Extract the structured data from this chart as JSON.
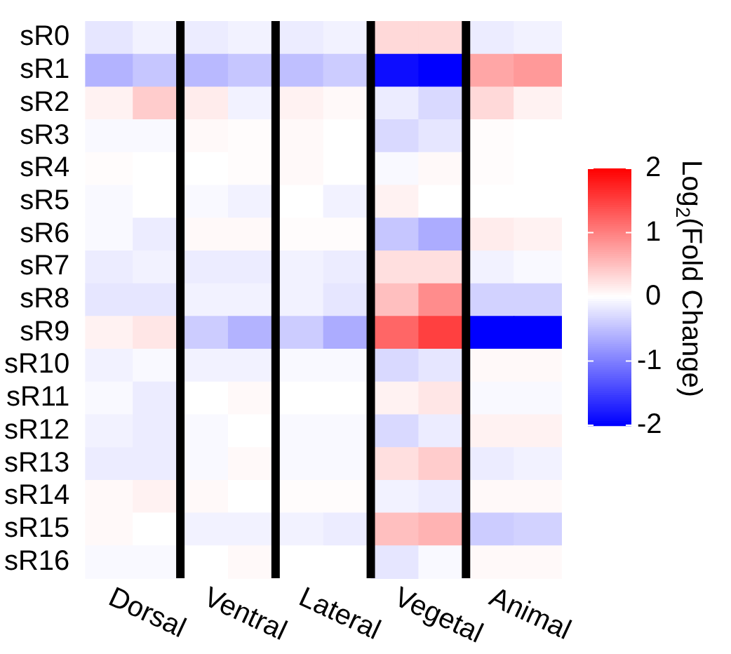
{
  "chart_data": {
    "type": "heatmap",
    "clabel": "Log$_{2}$(Fold Change)",
    "categories": [
      "Dorsal",
      null,
      "Ventral",
      null,
      "Lateral",
      null,
      "Vegetal",
      null,
      "Animal",
      null
    ],
    "y_categories": [
      "sR0",
      "sR1",
      "sR2",
      "sR3",
      "sR4",
      "sR5",
      "sR6",
      "sR7",
      "sR8",
      "sR9",
      "sR10",
      "sR11",
      "sR12",
      "sR13",
      "sR14",
      "sR15",
      "sR16"
    ],
    "cells": [
      [
        -0.2,
        -0.1,
        -0.15,
        -0.1,
        -0.15,
        -0.1,
        0.3,
        0.3,
        -0.15,
        -0.1
      ],
      [
        -0.6,
        -0.45,
        -0.55,
        -0.45,
        -0.5,
        -0.4,
        -1.9,
        -2,
        0.7,
        0.8
      ],
      [
        0.1,
        0.4,
        0.15,
        -0.1,
        0.1,
        0.05,
        -0.15,
        -0.3,
        0.3,
        0.1
      ],
      [
        -0.05,
        -0.05,
        0.05,
        0.02,
        0.05,
        0,
        -0.3,
        -0.2,
        0.02,
        0
      ],
      [
        0.02,
        0,
        0,
        0.02,
        0.05,
        0,
        -0.05,
        0.05,
        0.02,
        0
      ],
      [
        -0.05,
        0,
        -0.05,
        -0.1,
        0,
        -0.1,
        0.1,
        0,
        0,
        0
      ],
      [
        -0.05,
        -0.15,
        0.05,
        0.05,
        0.02,
        0.02,
        -0.45,
        -0.65,
        0.15,
        0.1
      ],
      [
        -0.15,
        -0.1,
        -0.15,
        -0.15,
        -0.1,
        -0.15,
        0.25,
        0.25,
        -0.1,
        -0.05
      ],
      [
        -0.2,
        -0.2,
        -0.1,
        -0.1,
        -0.1,
        -0.2,
        0.5,
        0.9,
        -0.35,
        -0.35
      ],
      [
        0.1,
        0.2,
        -0.4,
        -0.6,
        -0.4,
        -0.65,
        1.2,
        1.5,
        -2,
        -2
      ],
      [
        -0.1,
        -0.05,
        -0.1,
        -0.1,
        -0.05,
        -0.05,
        -0.3,
        -0.2,
        0.05,
        0.05
      ],
      [
        -0.05,
        -0.15,
        0,
        0.05,
        0,
        0,
        0.1,
        0.2,
        -0.05,
        -0.05
      ],
      [
        -0.1,
        -0.15,
        -0.05,
        0,
        -0.05,
        -0.05,
        -0.3,
        -0.15,
        0.1,
        0.1
      ],
      [
        -0.15,
        -0.15,
        -0.05,
        0.05,
        -0.05,
        -0.05,
        0.25,
        0.4,
        -0.15,
        -0.1
      ],
      [
        0.05,
        0.1,
        0.05,
        0,
        0.02,
        0.02,
        -0.1,
        -0.15,
        0.05,
        0.05
      ],
      [
        0.05,
        0,
        -0.1,
        -0.1,
        -0.1,
        -0.15,
        0.5,
        0.6,
        -0.4,
        -0.35
      ],
      [
        -0.05,
        -0.05,
        0,
        0.05,
        0,
        0,
        -0.2,
        -0.05,
        0.05,
        0.05
      ]
    ],
    "clim": [
      -2,
      2
    ],
    "cticks": [
      -2,
      -1,
      0,
      1,
      2
    ]
  }
}
